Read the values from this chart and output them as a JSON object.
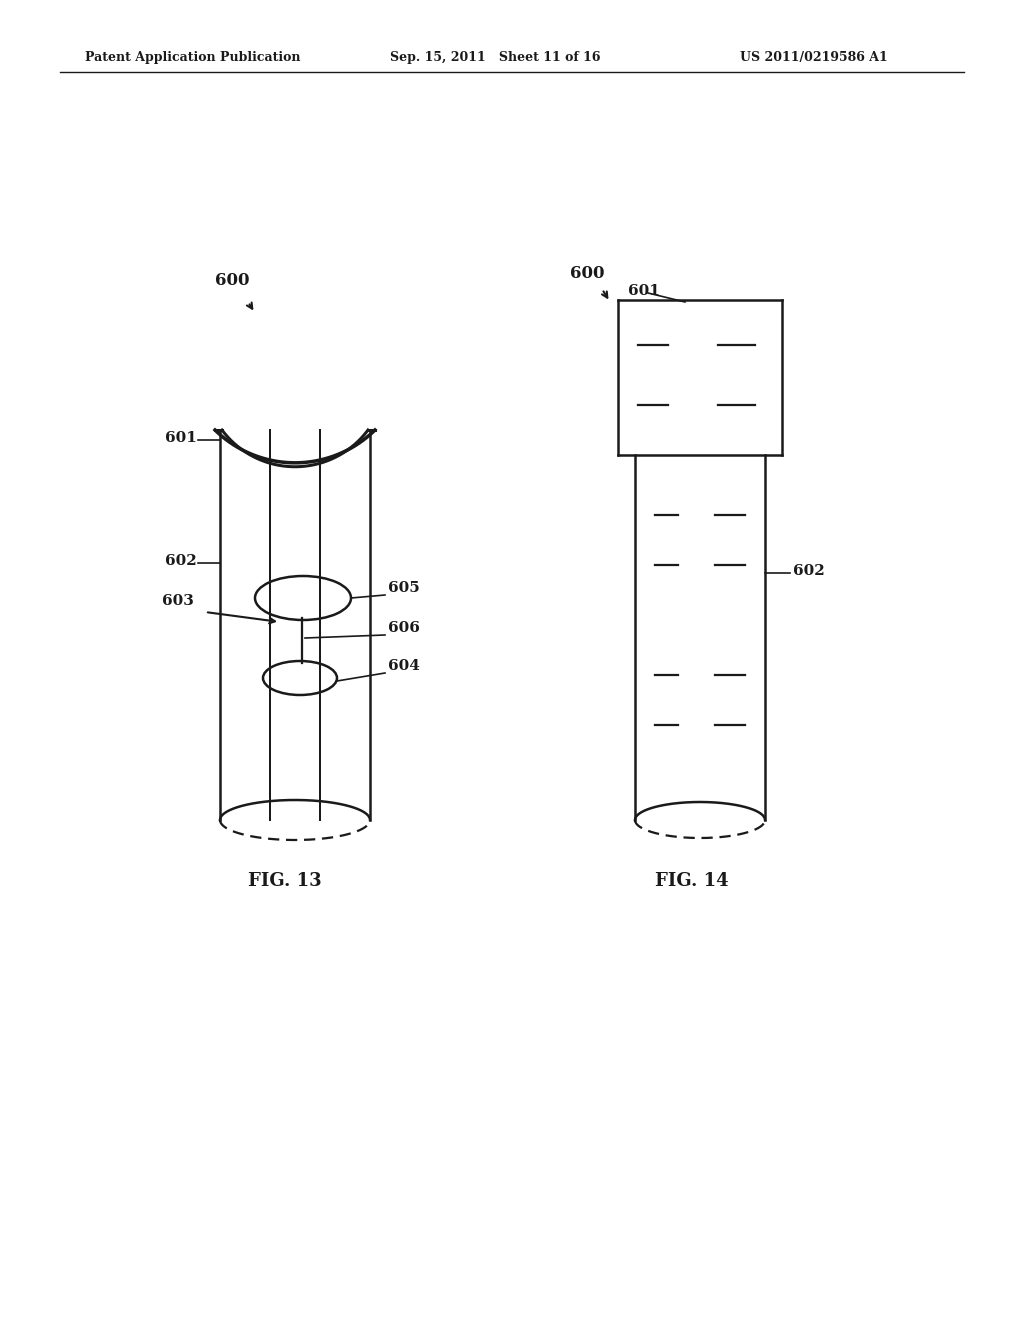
{
  "bg_color": "#ffffff",
  "line_color": "#1a1a1a",
  "header_left": "Patent Application Publication",
  "header_mid": "Sep. 15, 2011   Sheet 11 of 16",
  "header_right": "US 2011/0219586 A1",
  "fig13_label": "FIG. 13",
  "fig14_label": "FIG. 14",
  "label_600_fig13": "600",
  "label_600_fig14": "600",
  "label_601_fig13": "601",
  "label_602_fig13": "602",
  "label_602_fig14": "602",
  "label_601_fig14": "601",
  "label_603": "603",
  "label_604": "604",
  "label_605": "605",
  "label_606": "606"
}
